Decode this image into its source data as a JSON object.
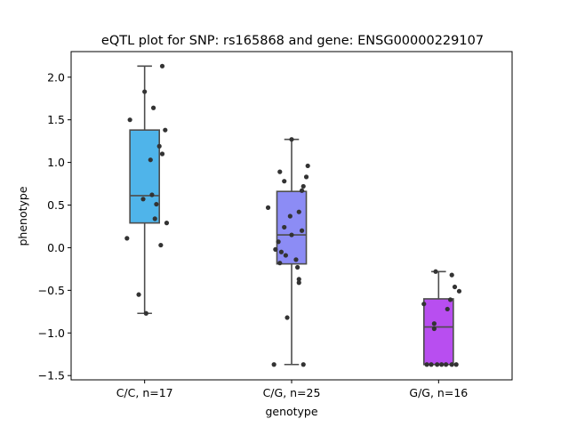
{
  "chart_data": {
    "type": "box",
    "title": "eQTL plot for SNP: rs165868 and gene: ENSG00000229107",
    "xlabel": "genotype",
    "ylabel": "phenotype",
    "ylim": [
      -1.55,
      2.3
    ],
    "yticks": [
      -1.5,
      -1.0,
      -0.5,
      0.0,
      0.5,
      1.0,
      1.5,
      2.0
    ],
    "ytick_labels": [
      "−1.5",
      "−1.0",
      "−0.5",
      "0.0",
      "0.5",
      "1.0",
      "1.5",
      "2.0"
    ],
    "grid": false,
    "categories": [
      "C/C, n=17",
      "C/G, n=25",
      "G/G, n=16"
    ],
    "colors": [
      "#4fb4ea",
      "#8c8cf5",
      "#b84ef0"
    ],
    "box_edge_color": "#4d4d4d",
    "point_color": "#333333",
    "groups": [
      {
        "name": "C/C, n=17",
        "whisker_low": -0.77,
        "q1": 0.29,
        "median": 0.61,
        "q3": 1.38,
        "whisker_high": 2.13,
        "points": [
          2.13,
          1.83,
          1.64,
          1.5,
          1.38,
          1.19,
          1.1,
          1.03,
          0.62,
          0.57,
          0.51,
          0.34,
          0.29,
          0.11,
          0.03,
          -0.55,
          -0.77
        ],
        "jitter": [
          0.12,
          0.0,
          0.06,
          -0.1,
          0.14,
          0.1,
          0.12,
          0.04,
          0.05,
          -0.01,
          0.08,
          0.07,
          0.15,
          -0.12,
          0.11,
          -0.04,
          0.01
        ]
      },
      {
        "name": "C/G, n=25",
        "whisker_low": -1.37,
        "q1": -0.19,
        "median": 0.15,
        "q3": 0.66,
        "whisker_high": 1.27,
        "points": [
          1.27,
          0.96,
          0.89,
          0.83,
          0.78,
          0.72,
          0.67,
          0.47,
          0.42,
          0.37,
          0.24,
          0.2,
          0.15,
          0.07,
          -0.02,
          -0.05,
          -0.09,
          -0.14,
          -0.18,
          -0.23,
          -0.37,
          -0.41,
          -0.82,
          -1.37,
          -1.37
        ],
        "jitter": [
          0.0,
          0.11,
          -0.08,
          0.1,
          -0.05,
          0.08,
          0.07,
          -0.16,
          0.05,
          -0.01,
          -0.05,
          0.07,
          0.0,
          -0.09,
          -0.11,
          -0.07,
          -0.04,
          0.03,
          -0.08,
          0.04,
          0.05,
          0.05,
          -0.03,
          -0.12,
          0.08
        ]
      },
      {
        "name": "G/G, n=16",
        "whisker_low": -1.37,
        "q1": -1.37,
        "median": -0.93,
        "q3": -0.6,
        "whisker_high": -0.28,
        "points": [
          -0.28,
          -0.32,
          -0.46,
          -0.51,
          -0.61,
          -0.66,
          -0.72,
          -0.89,
          -0.95,
          -1.37,
          -1.37,
          -1.37,
          -1.37,
          -1.37,
          -1.37,
          -1.37
        ],
        "jitter": [
          -0.02,
          0.09,
          0.11,
          0.14,
          0.08,
          -0.1,
          0.06,
          -0.03,
          -0.03,
          -0.08,
          -0.05,
          -0.01,
          0.02,
          0.05,
          0.09,
          0.12
        ]
      }
    ]
  }
}
